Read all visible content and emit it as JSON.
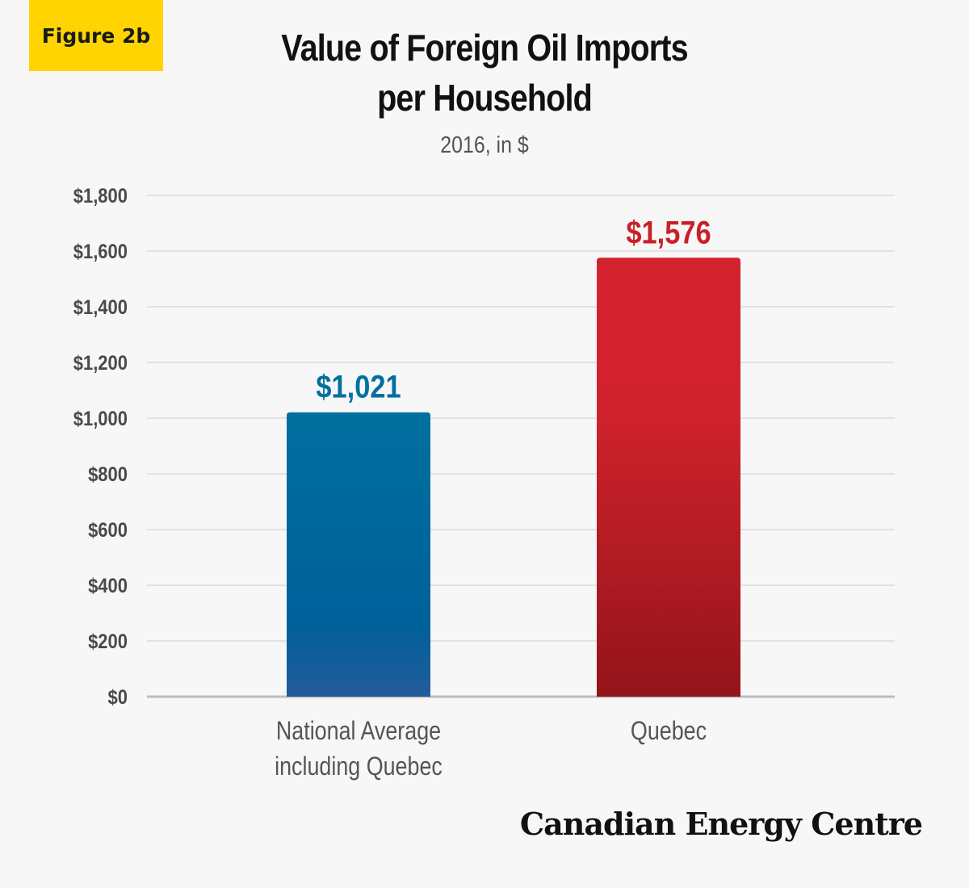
{
  "figure_label": "Figure 2b",
  "brand": "Canadian Energy Centre",
  "chart_data": {
    "type": "bar",
    "title_lines": [
      "Value of Foreign Oil Imports",
      "per Household"
    ],
    "subtitle": "2016, in $",
    "categories": [
      [
        "National Average",
        "including Quebec"
      ],
      [
        "Quebec"
      ]
    ],
    "values": [
      1021,
      1576
    ],
    "value_labels": [
      "$1,021",
      "$1,576"
    ],
    "ylim": [
      0,
      1800
    ],
    "yticks": [
      0,
      200,
      400,
      600,
      800,
      1000,
      1200,
      1400,
      1600,
      1800
    ],
    "ytick_labels": [
      "$0",
      "$200",
      "$400",
      "$600",
      "$800",
      "$1,000",
      "$1,200",
      "$1,400",
      "$1,600",
      "$1,800"
    ],
    "xlabel": "",
    "ylabel": "",
    "grid": true,
    "colors": {
      "bar_1_top": "#00709f",
      "bar_1_bottom": "#235c9c",
      "bar_2_top": "#d4232e",
      "bar_2_bottom": "#94141a",
      "label_1": "#00709f",
      "label_2": "#c8202a",
      "accent": "#ffd400"
    }
  }
}
